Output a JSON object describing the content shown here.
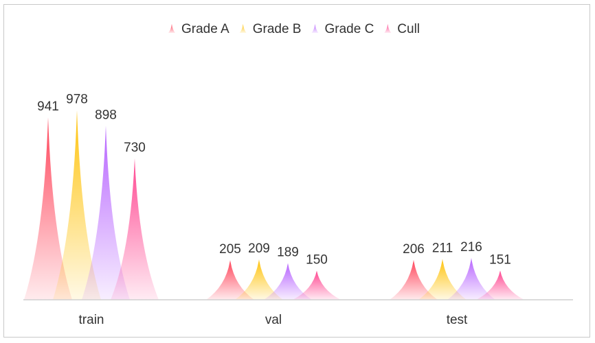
{
  "chart_data": {
    "type": "bar",
    "bar_shape": "pictorial-spike",
    "categories": [
      "train",
      "val",
      "test"
    ],
    "series": [
      {
        "name": "Grade A",
        "color": "#ff3b52",
        "values": [
          941,
          205,
          206
        ]
      },
      {
        "name": "Grade B",
        "color": "#ffc000",
        "values": [
          978,
          209,
          211
        ]
      },
      {
        "name": "Grade C",
        "color": "#b35cff",
        "values": [
          898,
          189,
          216
        ]
      },
      {
        "name": "Cull",
        "color": "#ff3d8b",
        "values": [
          730,
          150,
          151
        ]
      }
    ],
    "title": "",
    "xlabel": "",
    "ylabel": "",
    "ylim": [
      0,
      1000
    ],
    "legend_position": "top-center",
    "grid": false,
    "data_labels": true
  }
}
